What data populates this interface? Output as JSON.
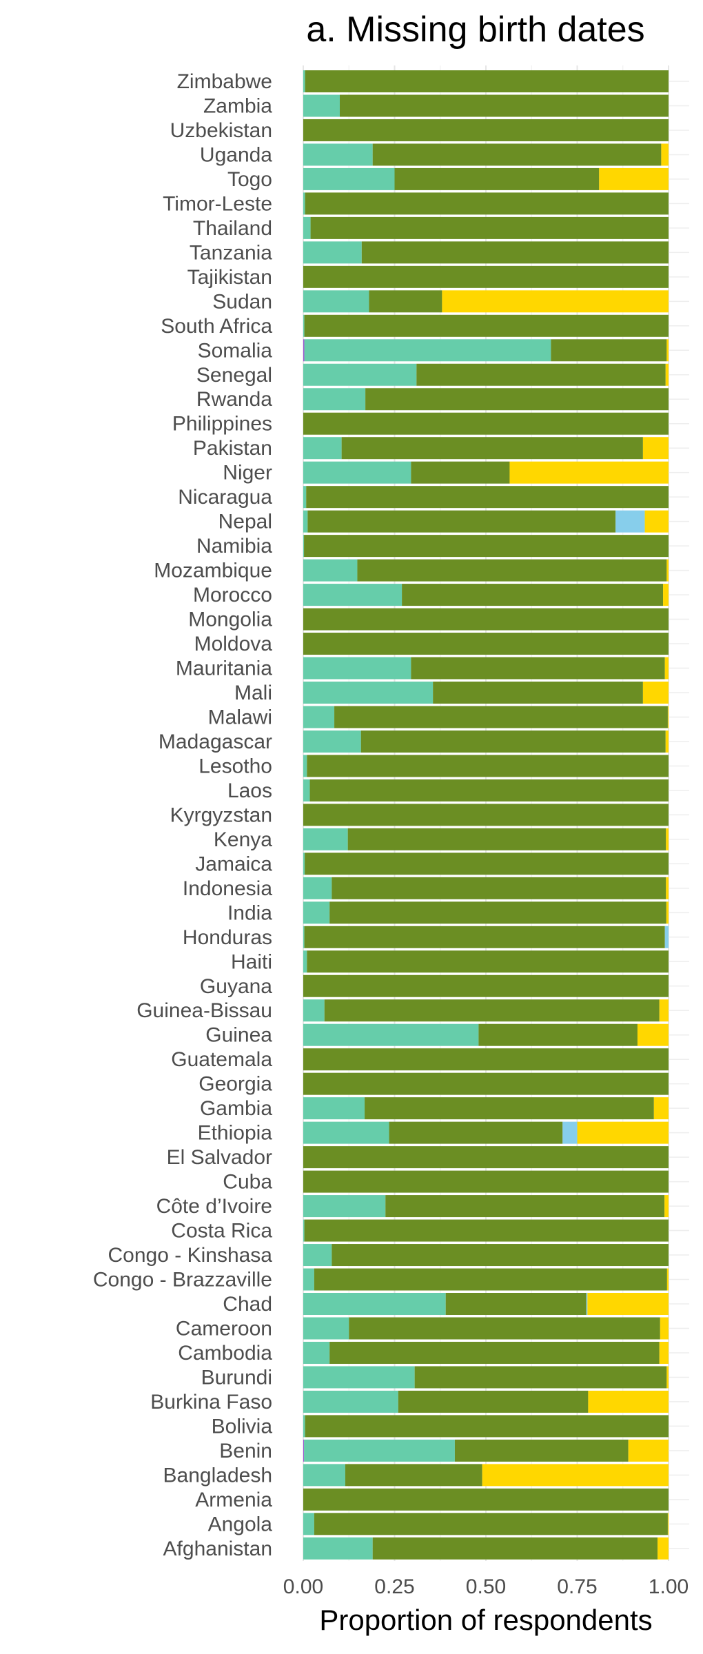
{
  "chart_data": {
    "type": "bar",
    "orientation": "horizontal",
    "stacked": true,
    "title": "a. Missing birth dates",
    "xlabel": "Proportion of respondents",
    "ylabel": "",
    "xlim": [
      0,
      1
    ],
    "x_ticks": [
      "0.00",
      "0.25",
      "0.50",
      "0.75",
      "1.00"
    ],
    "grid": "vertical",
    "legend": "none",
    "categories": [
      "Zimbabwe",
      "Zambia",
      "Uzbekistan",
      "Uganda",
      "Togo",
      "Timor-Leste",
      "Thailand",
      "Tanzania",
      "Tajikistan",
      "Sudan",
      "South Africa",
      "Somalia",
      "Senegal",
      "Rwanda",
      "Philippines",
      "Pakistan",
      "Niger",
      "Nicaragua",
      "Nepal",
      "Namibia",
      "Mozambique",
      "Morocco",
      "Mongolia",
      "Moldova",
      "Mauritania",
      "Mali",
      "Malawi",
      "Madagascar",
      "Lesotho",
      "Laos",
      "Kyrgyzstan",
      "Kenya",
      "Jamaica",
      "Indonesia",
      "India",
      "Honduras",
      "Haiti",
      "Guyana",
      "Guinea-Bissau",
      "Guinea",
      "Guatemala",
      "Georgia",
      "Gambia",
      "Ethiopia",
      "El Salvador",
      "Cuba",
      "Côte d’Ivoire",
      "Costa Rica",
      "Congo - Kinshasa",
      "Congo - Brazzaville",
      "Chad",
      "Cameroon",
      "Cambodia",
      "Burundi",
      "Burkina Faso",
      "Bolivia",
      "Benin",
      "Bangladesh",
      "Armenia",
      "Angola",
      "Afghanistan"
    ],
    "series": [
      {
        "color": "#9b59d0",
        "values": [
          0,
          0,
          0,
          0,
          0,
          0,
          0,
          0,
          0,
          0,
          0,
          0.003,
          0,
          0,
          0,
          0,
          0,
          0,
          0,
          0,
          0,
          0,
          0,
          0,
          0,
          0,
          0,
          0,
          0,
          0,
          0,
          0,
          0,
          0,
          0,
          0,
          0,
          0,
          0,
          0,
          0,
          0,
          0,
          0,
          0,
          0,
          0,
          0,
          0,
          0,
          0,
          0,
          0,
          0,
          0,
          0,
          0.002,
          0,
          0,
          0,
          0
        ]
      },
      {
        "color": "#66cdaa",
        "values": [
          0.005,
          0.1,
          0,
          0.19,
          0.25,
          0.005,
          0.02,
          0.16,
          0,
          0.18,
          0.003,
          0.675,
          0.31,
          0.17,
          0,
          0.105,
          0.295,
          0.008,
          0.012,
          0.002,
          0.148,
          0.27,
          0,
          0,
          0.295,
          0.355,
          0.085,
          0.158,
          0.01,
          0.018,
          0,
          0.122,
          0.004,
          0.078,
          0.072,
          0.003,
          0.01,
          0,
          0.058,
          0.48,
          0,
          0,
          0.168,
          0.235,
          0,
          0,
          0.225,
          0.003,
          0.078,
          0.03,
          0.39,
          0.125,
          0.072,
          0.305,
          0.26,
          0.005,
          0.413,
          0.115,
          0,
          0.03,
          0.19
        ]
      },
      {
        "color": "#6b8e23",
        "values": [
          0.995,
          0.9,
          1.0,
          0.79,
          0.56,
          0.995,
          0.98,
          0.84,
          1.0,
          0.2,
          0.997,
          0.317,
          0.682,
          0.83,
          1.0,
          0.825,
          0.27,
          0.992,
          0.843,
          0.998,
          0.847,
          0.715,
          1.0,
          1.0,
          0.695,
          0.575,
          0.913,
          0.834,
          0.99,
          0.982,
          1.0,
          0.871,
          0.996,
          0.915,
          0.922,
          0.987,
          0.99,
          1.0,
          0.917,
          0.435,
          1.0,
          1.0,
          0.792,
          0.475,
          1.0,
          1.0,
          0.764,
          0.997,
          0.922,
          0.966,
          0.385,
          0.852,
          0.903,
          0.69,
          0.52,
          0.995,
          0.475,
          0.375,
          1.0,
          0.968,
          0.78
        ]
      },
      {
        "color": "#87ceeb",
        "values": [
          0,
          0,
          0,
          0,
          0,
          0,
          0,
          0,
          0,
          0,
          0,
          0,
          0,
          0,
          0,
          0,
          0,
          0,
          0.08,
          0,
          0,
          0,
          0,
          0,
          0,
          0,
          0,
          0,
          0,
          0,
          0,
          0,
          0,
          0,
          0,
          0.01,
          0,
          0,
          0,
          0,
          0,
          0,
          0,
          0.04,
          0,
          0,
          0,
          0,
          0,
          0,
          0.003,
          0,
          0,
          0,
          0,
          0,
          0,
          0,
          0,
          0,
          0
        ]
      },
      {
        "color": "#ffd700",
        "values": [
          0,
          0,
          0,
          0.02,
          0.19,
          0,
          0,
          0,
          0,
          0.62,
          0,
          0.005,
          0.008,
          0,
          0,
          0.07,
          0.435,
          0,
          0.065,
          0,
          0.005,
          0.015,
          0,
          0,
          0.01,
          0.07,
          0.002,
          0.008,
          0,
          0,
          0,
          0.007,
          0,
          0.007,
          0.006,
          0,
          0,
          0,
          0.025,
          0.085,
          0,
          0,
          0.04,
          0.25,
          0,
          0,
          0.011,
          0,
          0,
          0.004,
          0.222,
          0.023,
          0.025,
          0.005,
          0.22,
          0,
          0.11,
          0.51,
          0,
          0.002,
          0.03
        ]
      }
    ]
  }
}
